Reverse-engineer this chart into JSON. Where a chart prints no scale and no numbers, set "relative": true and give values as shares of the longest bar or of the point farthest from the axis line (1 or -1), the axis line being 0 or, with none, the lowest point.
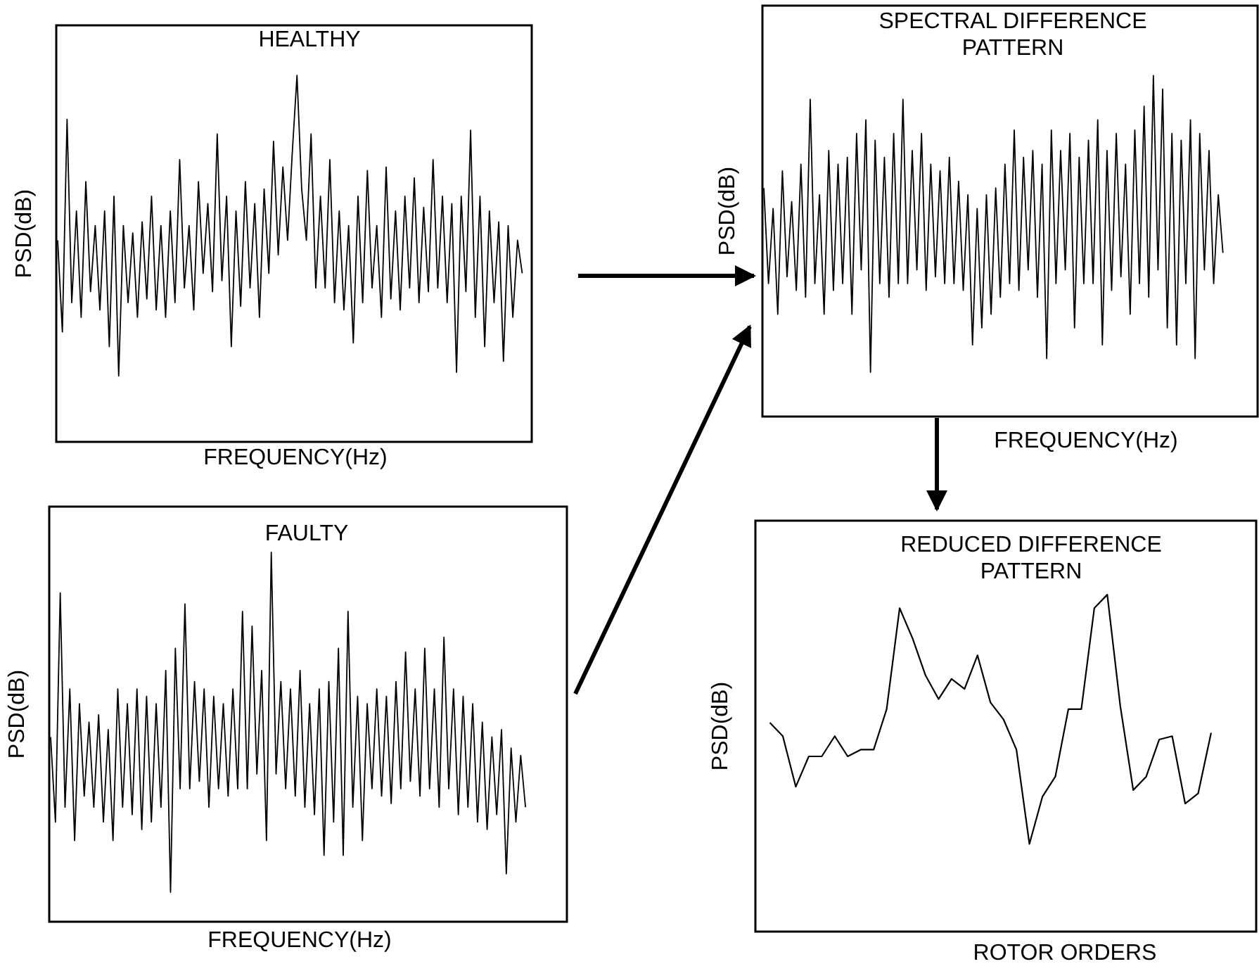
{
  "chart_data": [
    {
      "type": "line",
      "title": "HEALTHY",
      "xlabel": "FREQUENCY(Hz)",
      "ylabel": "PSD(dB)",
      "relative": true,
      "categories": [
        null,
        null,
        null,
        null,
        null,
        null,
        null,
        null,
        null,
        null,
        null,
        null,
        null,
        null,
        null,
        null,
        null,
        null,
        null,
        null,
        null,
        null,
        null,
        null,
        null,
        null,
        null,
        null,
        null,
        null,
        null,
        null,
        null,
        null,
        null,
        null,
        null,
        null,
        null,
        null,
        null,
        null,
        null,
        null,
        null,
        null,
        null,
        null,
        null,
        null,
        null,
        null,
        null,
        null,
        null,
        null,
        null,
        null,
        null,
        null,
        null,
        null,
        null,
        null,
        null,
        null,
        null,
        null,
        null,
        null,
        null,
        null,
        null,
        null,
        null,
        null,
        null,
        null,
        null,
        null,
        null,
        null,
        null,
        null,
        null,
        null,
        null,
        null,
        null,
        null,
        null,
        null,
        null,
        null,
        null,
        null,
        null,
        null,
        null,
        null
      ],
      "series": [
        {
          "color": "#000000",
          "values": [
            0.55,
            0.3,
            0.88,
            0.38,
            0.63,
            0.34,
            0.71,
            0.41,
            0.59,
            0.36,
            0.63,
            0.26,
            0.67,
            0.18,
            0.59,
            0.38,
            0.57,
            0.34,
            0.6,
            0.39,
            0.67,
            0.36,
            0.59,
            0.34,
            0.63,
            0.38,
            0.77,
            0.42,
            0.59,
            0.36,
            0.71,
            0.46,
            0.65,
            0.41,
            0.84,
            0.44,
            0.67,
            0.26,
            0.63,
            0.37,
            0.71,
            0.42,
            0.65,
            0.34,
            0.69,
            0.46,
            0.82,
            0.51,
            0.75,
            0.55,
            0.79,
            1,
            0.69,
            0.55,
            0.84,
            0.42,
            0.67,
            0.42,
            0.77,
            0.38,
            0.63,
            0.36,
            0.59,
            0.27,
            0.67,
            0.38,
            0.74,
            0.42,
            0.59,
            0.34,
            0.75,
            0.39,
            0.63,
            0.36,
            0.67,
            0.42,
            0.72,
            0.38,
            0.64,
            0.41,
            0.77,
            0.42,
            0.67,
            0.38,
            0.65,
            0.19,
            0.67,
            0.41,
            0.85,
            0.34,
            0.67,
            0.26,
            0.63,
            0.38,
            0.6,
            0.22,
            0.59,
            0.34,
            0.55,
            0.46
          ]
        }
      ]
    },
    {
      "type": "line",
      "title": "SPECTRAL DIFFERENCE PATTERN",
      "xlabel": "FREQUENCY(Hz)",
      "ylabel": "PSD(dB)",
      "relative": true,
      "categories": [
        null,
        null,
        null,
        null,
        null,
        null,
        null,
        null,
        null,
        null,
        null,
        null,
        null,
        null,
        null,
        null,
        null,
        null,
        null,
        null,
        null,
        null,
        null,
        null,
        null,
        null,
        null,
        null,
        null,
        null,
        null,
        null,
        null,
        null,
        null,
        null,
        null,
        null,
        null,
        null,
        null,
        null,
        null,
        null,
        null,
        null,
        null,
        null,
        null,
        null,
        null,
        null,
        null,
        null,
        null,
        null,
        null,
        null,
        null,
        null,
        null,
        null,
        null,
        null,
        null,
        null,
        null,
        null,
        null,
        null,
        null,
        null,
        null,
        null,
        null,
        null,
        null,
        null,
        null,
        null,
        null,
        null,
        null,
        null,
        null,
        null,
        null,
        null,
        null,
        null,
        null,
        null,
        null,
        null,
        null,
        null,
        null,
        null,
        null,
        null
      ],
      "series": [
        {
          "color": "#000000",
          "values": [
            0.67,
            0.39,
            0.61,
            0.3,
            0.72,
            0.41,
            0.63,
            0.37,
            0.74,
            0.35,
            0.93,
            0.39,
            0.65,
            0.3,
            0.78,
            0.37,
            0.74,
            0.39,
            0.76,
            0.3,
            0.83,
            0.43,
            0.87,
            0.13,
            0.81,
            0.39,
            0.76,
            0.35,
            0.83,
            0.39,
            0.93,
            0.39,
            0.78,
            0.43,
            0.83,
            0.37,
            0.74,
            0.41,
            0.72,
            0.39,
            0.76,
            0.39,
            0.69,
            0.37,
            0.65,
            0.21,
            0.61,
            0.26,
            0.65,
            0.3,
            0.67,
            0.35,
            0.74,
            0.39,
            0.84,
            0.37,
            0.76,
            0.43,
            0.78,
            0.35,
            0.74,
            0.17,
            0.84,
            0.39,
            0.78,
            0.43,
            0.83,
            0.26,
            0.76,
            0.39,
            0.81,
            0.39,
            0.87,
            0.21,
            0.78,
            0.37,
            0.83,
            0.41,
            0.74,
            0.3,
            0.84,
            0.39,
            0.91,
            0.35,
            1,
            0.43,
            0.96,
            0.26,
            0.83,
            0.21,
            0.81,
            0.39,
            0.87,
            0.17,
            0.83,
            0.43,
            0.78,
            0.39,
            0.65,
            0.48
          ]
        }
      ]
    },
    {
      "type": "line",
      "title": "FAULTY",
      "xlabel": "FREQUENCY(Hz)",
      "ylabel": "PSD(dB)",
      "relative": true,
      "categories": [
        null,
        null,
        null,
        null,
        null,
        null,
        null,
        null,
        null,
        null,
        null,
        null,
        null,
        null,
        null,
        null,
        null,
        null,
        null,
        null,
        null,
        null,
        null,
        null,
        null,
        null,
        null,
        null,
        null,
        null,
        null,
        null,
        null,
        null,
        null,
        null,
        null,
        null,
        null,
        null,
        null,
        null,
        null,
        null,
        null,
        null,
        null,
        null,
        null,
        null,
        null,
        null,
        null,
        null,
        null,
        null,
        null,
        null,
        null,
        null,
        null,
        null,
        null,
        null,
        null,
        null,
        null,
        null,
        null,
        null,
        null,
        null,
        null,
        null,
        null,
        null,
        null,
        null,
        null,
        null,
        null,
        null,
        null,
        null,
        null,
        null,
        null,
        null,
        null,
        null,
        null,
        null,
        null,
        null,
        null,
        null,
        null,
        null,
        null,
        null
      ],
      "series": [
        {
          "color": "#000000",
          "values": [
            0.5,
            0.27,
            0.89,
            0.31,
            0.63,
            0.22,
            0.59,
            0.34,
            0.54,
            0.31,
            0.56,
            0.27,
            0.52,
            0.22,
            0.63,
            0.31,
            0.59,
            0.29,
            0.63,
            0.25,
            0.61,
            0.27,
            0.59,
            0.31,
            0.68,
            0.08,
            0.74,
            0.36,
            0.86,
            0.36,
            0.65,
            0.38,
            0.63,
            0.31,
            0.61,
            0.36,
            0.59,
            0.34,
            0.63,
            0.36,
            0.84,
            0.36,
            0.8,
            0.4,
            0.68,
            0.22,
            1,
            0.4,
            0.65,
            0.36,
            0.63,
            0.34,
            0.68,
            0.31,
            0.59,
            0.29,
            0.63,
            0.18,
            0.65,
            0.27,
            0.74,
            0.18,
            0.84,
            0.31,
            0.61,
            0.22,
            0.59,
            0.36,
            0.63,
            0.34,
            0.61,
            0.32,
            0.65,
            0.36,
            0.73,
            0.38,
            0.63,
            0.34,
            0.74,
            0.36,
            0.63,
            0.31,
            0.77,
            0.36,
            0.63,
            0.29,
            0.61,
            0.31,
            0.59,
            0.27,
            0.54,
            0.25,
            0.5,
            0.29,
            0.52,
            0.13,
            0.47,
            0.27,
            0.45,
            0.31
          ]
        }
      ]
    },
    {
      "type": "line",
      "title": "REDUCED DIFFERENCE PATTERN",
      "xlabel": "ROTOR ORDERS",
      "ylabel": "PSD(dB)",
      "relative": true,
      "categories": [
        null,
        null,
        null,
        null,
        null,
        null,
        null,
        null,
        null,
        null,
        null,
        null,
        null,
        null,
        null,
        null,
        null,
        null,
        null,
        null,
        null,
        null,
        null,
        null,
        null,
        null,
        null,
        null,
        null,
        null,
        null,
        null,
        null,
        null,
        null
      ],
      "series": [
        {
          "color": "#000000",
          "values": [
            0.62,
            0.58,
            0.43,
            0.52,
            0.52,
            0.58,
            0.52,
            0.54,
            0.54,
            0.66,
            0.96,
            0.87,
            0.76,
            0.69,
            0.75,
            0.72,
            0.82,
            0.68,
            0.63,
            0.54,
            0.26,
            0.4,
            0.46,
            0.66,
            0.66,
            0.96,
            1,
            0.67,
            0.42,
            0.46,
            0.57,
            0.58,
            0.38,
            0.41,
            0.59
          ]
        }
      ]
    }
  ]
}
